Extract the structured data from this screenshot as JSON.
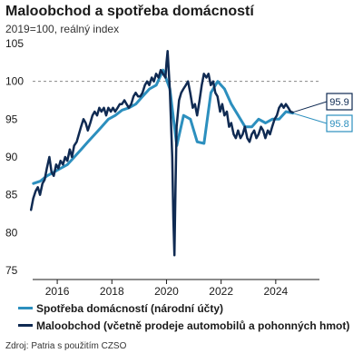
{
  "header": {
    "title": "Maloobchod a spotřeba domácností",
    "subtitle": "2019=100, reálný index"
  },
  "source": "Zdroj: Patria s použitím CZSO",
  "colors": {
    "spotreba": "#2c8fbe",
    "maloobchod": "#0f2a52",
    "reference": "#888888",
    "axis": "#1a1a1a"
  },
  "chart_data": {
    "type": "line",
    "title": "Maloobchod a spotřeba domácností",
    "subtitle": "2019=100, reálný index",
    "xlabel": "",
    "ylabel": "",
    "xlim": [
      2015.1,
      2025.6
    ],
    "ylim": [
      75,
      105
    ],
    "yticks": [
      75,
      80,
      85,
      90,
      95,
      100,
      105
    ],
    "xticks": [
      2016,
      2018,
      2020,
      2022,
      2024
    ],
    "xtick_labels": [
      "2016",
      "2018",
      "2020",
      "2022",
      "2024"
    ],
    "reference_line": {
      "y": 100,
      "style": "dashed"
    },
    "grid": false,
    "legend": "bottom",
    "series": [
      {
        "name": "Spotřeba domácností (národní účty)",
        "color": "#2c8fbe",
        "end_label": "95.8",
        "points": [
          [
            2015.125,
            86.5
          ],
          [
            2015.375,
            86.8
          ],
          [
            2015.625,
            87.5
          ],
          [
            2015.875,
            88.0
          ],
          [
            2016.125,
            88.5
          ],
          [
            2016.375,
            89.0
          ],
          [
            2016.625,
            90.0
          ],
          [
            2016.875,
            91.0
          ],
          [
            2017.125,
            92.0
          ],
          [
            2017.375,
            93.0
          ],
          [
            2017.625,
            94.0
          ],
          [
            2017.875,
            95.0
          ],
          [
            2018.125,
            95.5
          ],
          [
            2018.375,
            96.2
          ],
          [
            2018.625,
            96.5
          ],
          [
            2018.875,
            97.0
          ],
          [
            2019.125,
            98.0
          ],
          [
            2019.375,
            99.0
          ],
          [
            2019.625,
            99.5
          ],
          [
            2019.875,
            101.5
          ],
          [
            2020.125,
            99.0
          ],
          [
            2020.375,
            91.5
          ],
          [
            2020.625,
            95.5
          ],
          [
            2020.875,
            95.0
          ],
          [
            2021.125,
            92.0
          ],
          [
            2021.375,
            91.8
          ],
          [
            2021.625,
            98.5
          ],
          [
            2021.875,
            100.0
          ],
          [
            2022.125,
            99.0
          ],
          [
            2022.375,
            97.0
          ],
          [
            2022.625,
            95.5
          ],
          [
            2022.875,
            94.0
          ],
          [
            2023.125,
            94.0
          ],
          [
            2023.375,
            95.0
          ],
          [
            2023.625,
            94.5
          ],
          [
            2023.875,
            95.0
          ],
          [
            2024.125,
            95.0
          ],
          [
            2024.375,
            96.0
          ],
          [
            2024.625,
            95.8
          ]
        ]
      },
      {
        "name": "Maloobchod (včetně prodeje automobilů a pohonných hmot)",
        "color": "#0f2a52",
        "end_label": "95.9",
        "points": [
          [
            2015.04,
            83.0
          ],
          [
            2015.12,
            84.5
          ],
          [
            2015.21,
            85.5
          ],
          [
            2015.29,
            86.0
          ],
          [
            2015.37,
            85.0
          ],
          [
            2015.46,
            86.5
          ],
          [
            2015.54,
            87.0
          ],
          [
            2015.62,
            88.5
          ],
          [
            2015.71,
            90.0
          ],
          [
            2015.79,
            88.0
          ],
          [
            2015.87,
            87.5
          ],
          [
            2015.96,
            89.0
          ],
          [
            2016.04,
            88.5
          ],
          [
            2016.12,
            89.5
          ],
          [
            2016.21,
            89.0
          ],
          [
            2016.29,
            90.0
          ],
          [
            2016.37,
            89.5
          ],
          [
            2016.46,
            91.0
          ],
          [
            2016.54,
            90.0
          ],
          [
            2016.62,
            91.5
          ],
          [
            2016.71,
            92.0
          ],
          [
            2016.79,
            93.0
          ],
          [
            2016.87,
            94.0
          ],
          [
            2016.96,
            95.0
          ],
          [
            2017.04,
            94.5
          ],
          [
            2017.12,
            93.5
          ],
          [
            2017.21,
            94.5
          ],
          [
            2017.29,
            95.5
          ],
          [
            2017.37,
            96.0
          ],
          [
            2017.46,
            95.5
          ],
          [
            2017.54,
            96.5
          ],
          [
            2017.62,
            96.0
          ],
          [
            2017.71,
            96.5
          ],
          [
            2017.79,
            95.5
          ],
          [
            2017.87,
            96.5
          ],
          [
            2017.96,
            96.0
          ],
          [
            2018.04,
            96.5
          ],
          [
            2018.12,
            96.0
          ],
          [
            2018.21,
            96.5
          ],
          [
            2018.29,
            97.0
          ],
          [
            2018.37,
            97.0
          ],
          [
            2018.46,
            97.5
          ],
          [
            2018.54,
            97.0
          ],
          [
            2018.62,
            96.5
          ],
          [
            2018.71,
            97.0
          ],
          [
            2018.79,
            98.0
          ],
          [
            2018.87,
            98.5
          ],
          [
            2018.96,
            98.0
          ],
          [
            2019.04,
            98.0
          ],
          [
            2019.12,
            98.5
          ],
          [
            2019.21,
            99.5
          ],
          [
            2019.29,
            100.0
          ],
          [
            2019.37,
            99.5
          ],
          [
            2019.46,
            100.5
          ],
          [
            2019.54,
            100.0
          ],
          [
            2019.62,
            101.0
          ],
          [
            2019.71,
            100.5
          ],
          [
            2019.79,
            101.5
          ],
          [
            2019.87,
            101.0
          ],
          [
            2019.96,
            100.5
          ],
          [
            2020.0,
            102.5
          ],
          [
            2020.04,
            104.0
          ],
          [
            2020.12,
            99.0
          ],
          [
            2020.21,
            90.0
          ],
          [
            2020.25,
            82.0
          ],
          [
            2020.29,
            77.0
          ],
          [
            2020.33,
            86.0
          ],
          [
            2020.37,
            94.0
          ],
          [
            2020.46,
            97.5
          ],
          [
            2020.54,
            98.5
          ],
          [
            2020.62,
            99.0
          ],
          [
            2020.71,
            99.5
          ],
          [
            2020.79,
            100.0
          ],
          [
            2020.87,
            98.5
          ],
          [
            2020.96,
            96.5
          ],
          [
            2021.04,
            97.0
          ],
          [
            2021.12,
            95.5
          ],
          [
            2021.21,
            97.5
          ],
          [
            2021.29,
            99.5
          ],
          [
            2021.37,
            101.0
          ],
          [
            2021.46,
            100.5
          ],
          [
            2021.54,
            101.0
          ],
          [
            2021.62,
            99.5
          ],
          [
            2021.71,
            100.0
          ],
          [
            2021.79,
            98.5
          ],
          [
            2021.87,
            98.0
          ],
          [
            2021.96,
            96.0
          ],
          [
            2022.04,
            97.0
          ],
          [
            2022.12,
            95.5
          ],
          [
            2022.21,
            96.0
          ],
          [
            2022.29,
            94.0
          ],
          [
            2022.37,
            94.5
          ],
          [
            2022.46,
            93.0
          ],
          [
            2022.54,
            92.5
          ],
          [
            2022.62,
            93.5
          ],
          [
            2022.71,
            92.5
          ],
          [
            2022.79,
            93.0
          ],
          [
            2022.87,
            94.0
          ],
          [
            2022.96,
            92.5
          ],
          [
            2023.04,
            92.0
          ],
          [
            2023.12,
            93.0
          ],
          [
            2023.21,
            93.5
          ],
          [
            2023.29,
            92.5
          ],
          [
            2023.37,
            93.0
          ],
          [
            2023.46,
            94.0
          ],
          [
            2023.54,
            93.5
          ],
          [
            2023.62,
            92.5
          ],
          [
            2023.71,
            93.5
          ],
          [
            2023.79,
            93.0
          ],
          [
            2023.87,
            94.0
          ],
          [
            2023.96,
            95.0
          ],
          [
            2024.04,
            95.5
          ],
          [
            2024.12,
            96.5
          ],
          [
            2024.21,
            97.0
          ],
          [
            2024.29,
            96.5
          ],
          [
            2024.37,
            97.0
          ],
          [
            2024.46,
            96.5
          ],
          [
            2024.54,
            96.0
          ],
          [
            2024.62,
            95.9
          ]
        ]
      }
    ]
  }
}
